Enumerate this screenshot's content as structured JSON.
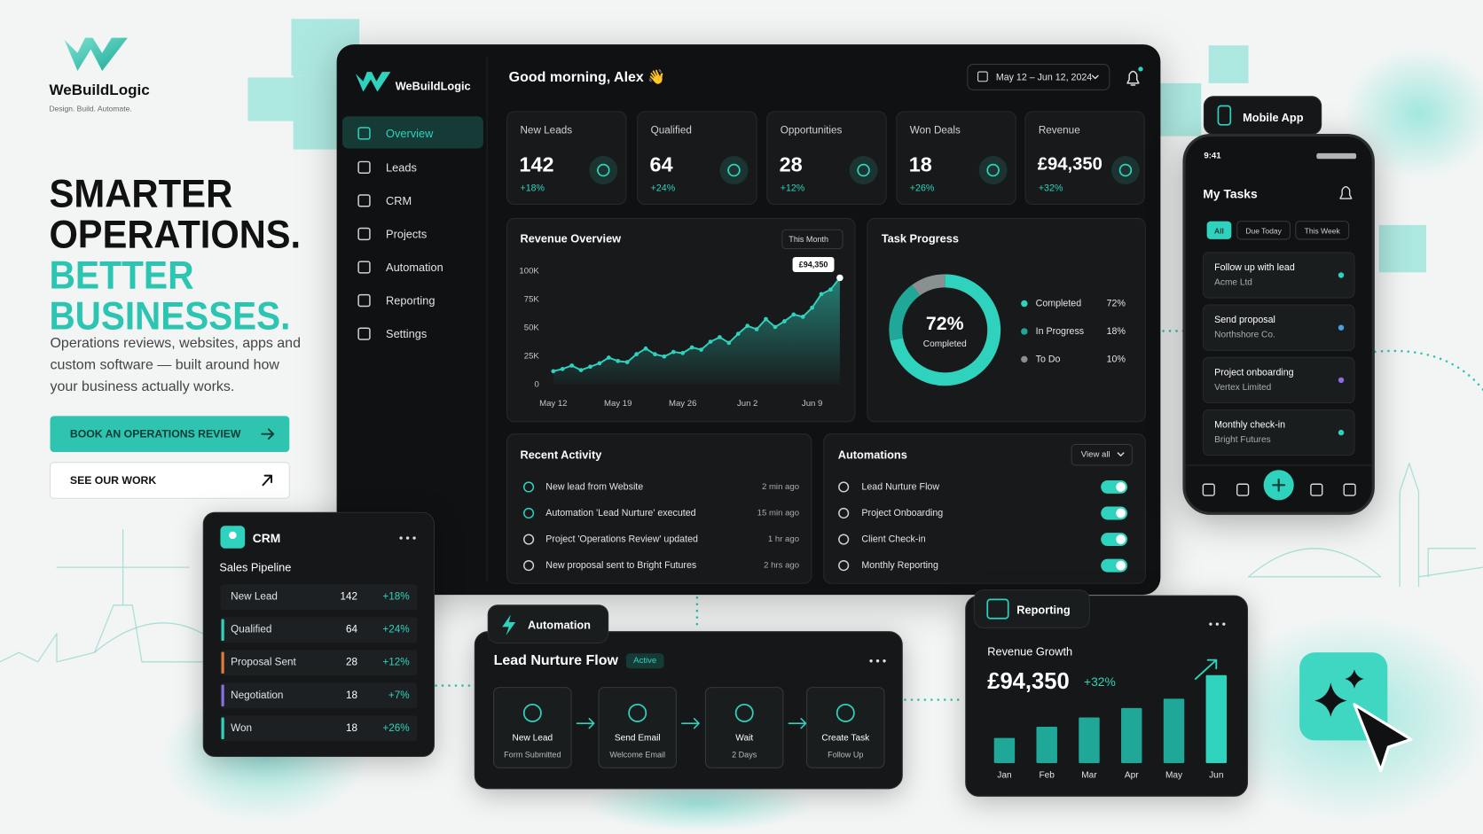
{
  "brand": {
    "name": "WeBuildLogic",
    "tagline": "Design. Build. Automate."
  },
  "hero": {
    "headline": [
      "SMARTER",
      "OPERATIONS."
    ],
    "headline_accent": [
      "BETTER",
      "BUSINESSES."
    ],
    "body_lines": [
      "Operations reviews, websites, apps and",
      "custom software — built around how",
      "your business actually works."
    ],
    "primary_cta": "BOOK AN OPERATIONS REVIEW",
    "secondary_cta": "SEE OUR WORK"
  },
  "dashboard": {
    "brand": "WeBuildLogic",
    "nav": [
      "Overview",
      "Leads",
      "CRM",
      "Projects",
      "Automation",
      "Reporting",
      "Settings"
    ],
    "active_nav": 0,
    "greeting": "Good morning, Alex 👋",
    "date_range": "May 12 – Jun 12, 2024",
    "kpis": [
      {
        "label": "New Leads",
        "value": "142",
        "change": "+18%"
      },
      {
        "label": "Qualified",
        "value": "64",
        "change": "+24%"
      },
      {
        "label": "Opportunities",
        "value": "28",
        "change": "+12%"
      },
      {
        "label": "Won Deals",
        "value": "18",
        "change": "+26%"
      },
      {
        "label": "Revenue",
        "value": "£94,350",
        "change": "+32%"
      }
    ],
    "revenue_overview": {
      "title": "Revenue Overview",
      "filter": "This Month",
      "callout": "£94,350",
      "chart_data": {
        "type": "line",
        "categories": [
          "May 12",
          null,
          null,
          null,
          null,
          null,
          null,
          "May 19",
          null,
          null,
          null,
          null,
          null,
          null,
          "May 26",
          null,
          null,
          null,
          null,
          null,
          null,
          "Jun 2",
          null,
          null,
          null,
          null,
          null,
          null,
          "Jun 9",
          null,
          null,
          null
        ],
        "values": [
          12000,
          14000,
          17000,
          13000,
          16000,
          19000,
          24000,
          21000,
          20000,
          27000,
          32000,
          27000,
          25000,
          29000,
          28000,
          33000,
          31000,
          38000,
          42000,
          37000,
          45000,
          52000,
          49000,
          58000,
          51000,
          56000,
          62000,
          60000,
          68000,
          80000,
          84000,
          94350
        ],
        "color": "#2fd3bd",
        "ylim": [
          0,
          100000
        ],
        "yticks": [
          0,
          {
            "value": 25000,
            "label": "25K"
          },
          {
            "value": 50000,
            "label": "50K"
          },
          {
            "value": 75000,
            "label": "75K"
          },
          {
            "value": 100000,
            "label": "100K"
          }
        ]
      }
    },
    "task_progress": {
      "title": "Task Progress",
      "chart_data": {
        "type": "donut",
        "categories": [
          "Completed",
          "In Progress",
          "To Do"
        ],
        "values": [
          72,
          18,
          10
        ],
        "value_labels": [
          "72%",
          "18%",
          "10%"
        ],
        "colors": [
          "#2fd3bd",
          "#1fa898",
          "#8a8f91"
        ]
      }
    },
    "recent_activity": {
      "title": "Recent Activity",
      "items": [
        {
          "text": "New lead from Website",
          "time": "2 min ago"
        },
        {
          "text": "Automation 'Lead Nurture' executed",
          "time": "15 min ago"
        },
        {
          "text": "Project 'Operations Review' updated",
          "time": "1 hr ago"
        },
        {
          "text": "New proposal sent to Bright Futures",
          "time": "2 hrs ago"
        }
      ]
    },
    "automations": {
      "title": "Automations",
      "action": "View all",
      "items": [
        {
          "name": "Lead Nurture Flow",
          "enabled": true
        },
        {
          "name": "Project Onboarding",
          "enabled": true
        },
        {
          "name": "Client Check-in",
          "enabled": true
        },
        {
          "name": "Monthly Reporting",
          "enabled": true
        }
      ]
    }
  },
  "crm": {
    "title": "CRM",
    "subtitle": "Sales Pipeline",
    "rows": [
      {
        "stage": "New Lead",
        "count": "142",
        "change": "+18%"
      },
      {
        "stage": "Qualified",
        "count": "64",
        "change": "+24%",
        "color": "#2fd3bd"
      },
      {
        "stage": "Proposal Sent",
        "count": "28",
        "change": "+12%",
        "color": "#e07a3a"
      },
      {
        "stage": "Negotiation",
        "count": "18",
        "change": "+7%",
        "color": "#8a6de0"
      },
      {
        "stage": "Won",
        "count": "18",
        "change": "+26%",
        "color": "#2fd3bd"
      }
    ]
  },
  "automation_flow": {
    "tab": "Automation",
    "title": "Lead Nurture Flow",
    "status": "Active",
    "steps": [
      {
        "label": "New Lead",
        "detail": "Form Submitted"
      },
      {
        "label": "Send Email",
        "detail": "Welcome Email"
      },
      {
        "label": "Wait",
        "detail": "2 Days"
      },
      {
        "label": "Create Task",
        "detail": "Follow Up"
      }
    ]
  },
  "reporting": {
    "tab": "Reporting",
    "title": "Revenue Growth",
    "total": "£94,350",
    "change": "+32%",
    "chart_data": {
      "type": "bar",
      "categories": [
        "Jan",
        "Feb",
        "Mar",
        "Apr",
        "May",
        "Jun"
      ],
      "values": [
        27000,
        39000,
        49000,
        59000,
        69000,
        94350
      ],
      "color": "#1fa898",
      "highlight_color": "#2fd3bd"
    }
  },
  "mobile": {
    "label": "Mobile App",
    "time": "9:41",
    "title": "My Tasks",
    "filters": [
      "All",
      "Due Today",
      "This Week"
    ],
    "tasks": [
      {
        "title": "Follow up with lead",
        "subtitle": "Acme Ltd",
        "color": "#2fd3bd"
      },
      {
        "title": "Send proposal",
        "subtitle": "Northshore Co.",
        "color": "#4a9ee8"
      },
      {
        "title": "Project onboarding",
        "subtitle": "Vertex Limited",
        "color": "#8a6de0"
      },
      {
        "title": "Monthly check-in",
        "subtitle": "Bright Futures",
        "color": "#2fd3bd"
      }
    ]
  }
}
